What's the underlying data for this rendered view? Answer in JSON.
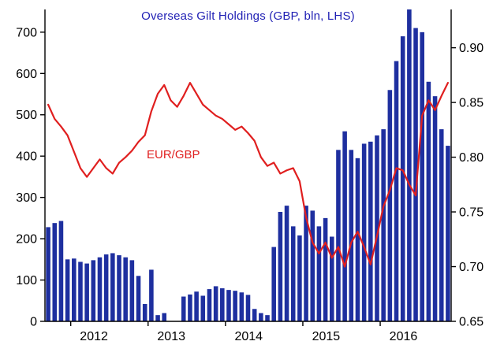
{
  "colors": {
    "bars": "#1e2f9f",
    "line": "#e01f1f",
    "title": "#1f1fb4",
    "line_label": "#e01f1f",
    "axis": "#000000",
    "tick_text": "#000000"
  },
  "chart_data": {
    "type": "bar",
    "title": "Overseas Gilt Holdings (GBP, bln, LHS)",
    "line_series_label": "EUR/GBP",
    "frequency": "monthly",
    "start_month": "2011-09",
    "end_month": "2016-11",
    "axes": {
      "left": {
        "ticks": [
          0,
          100,
          200,
          300,
          400,
          500,
          600,
          700
        ],
        "range": [
          0,
          755
        ]
      },
      "right": {
        "ticks": [
          "0.65",
          "0.70",
          "0.75",
          "0.80",
          "0.85",
          "0.90"
        ],
        "range": [
          0.65,
          0.935
        ]
      },
      "x": {
        "year_labels": [
          "2012",
          "2013",
          "2014",
          "2015",
          "2016"
        ],
        "start_fractional_year": 2011.667,
        "end_fractional_year": 2016.917
      }
    },
    "series": [
      {
        "name": "Overseas Gilt Holdings (GBP, bln, LHS)",
        "type": "bar",
        "axis": "left",
        "values": [
          228,
          238,
          243,
          150,
          152,
          144,
          140,
          148,
          155,
          162,
          165,
          160,
          155,
          148,
          110,
          42,
          125,
          15,
          20,
          0,
          0,
          60,
          65,
          72,
          62,
          78,
          85,
          80,
          76,
          74,
          70,
          64,
          30,
          20,
          15,
          180,
          265,
          280,
          230,
          208,
          280,
          268,
          230,
          250,
          205,
          415,
          460,
          415,
          395,
          430,
          435,
          450,
          465,
          560,
          630,
          690,
          760,
          710,
          700,
          580,
          545,
          465,
          425
        ]
      },
      {
        "name": "EUR/GBP",
        "type": "line",
        "axis": "right",
        "values": [
          0.848,
          0.835,
          0.828,
          0.82,
          0.805,
          0.79,
          0.782,
          0.79,
          0.798,
          0.79,
          0.785,
          0.795,
          0.8,
          0.806,
          0.814,
          0.82,
          0.842,
          0.858,
          0.866,
          0.852,
          0.846,
          0.856,
          0.868,
          0.858,
          0.848,
          0.843,
          0.838,
          0.835,
          0.83,
          0.825,
          0.828,
          0.822,
          0.815,
          0.8,
          0.792,
          0.795,
          0.785,
          0.788,
          0.79,
          0.778,
          0.745,
          0.722,
          0.712,
          0.722,
          0.708,
          0.718,
          0.7,
          0.722,
          0.732,
          0.718,
          0.702,
          0.728,
          0.755,
          0.77,
          0.79,
          0.788,
          0.775,
          0.765,
          0.838,
          0.852,
          0.843,
          0.856,
          0.868
        ]
      }
    ]
  }
}
